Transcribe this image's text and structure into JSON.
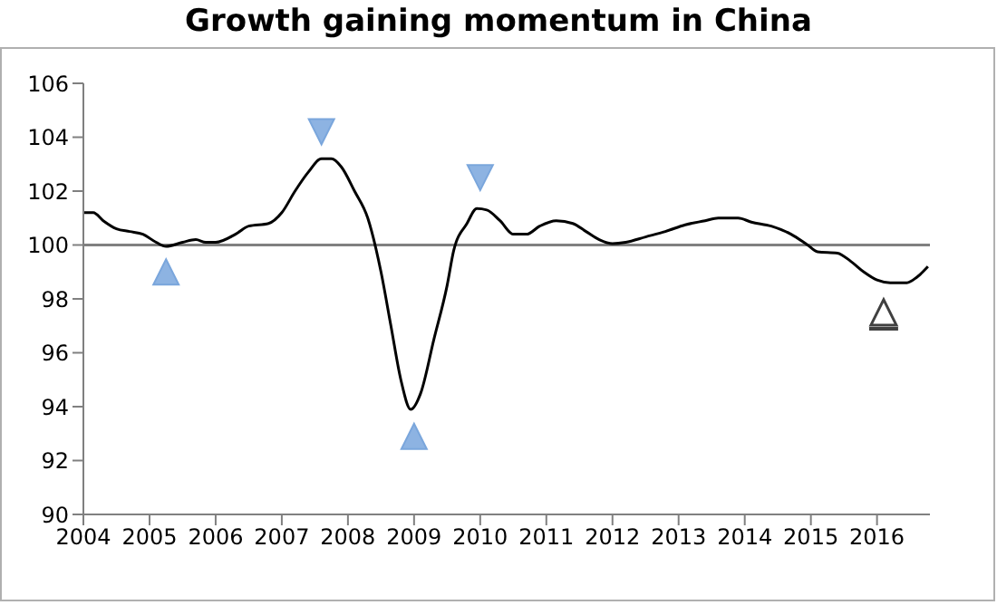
{
  "chart_data": {
    "type": "line",
    "title": "Growth gaining momentum in China",
    "x": [
      2004.0,
      2004.15,
      2004.3,
      2004.5,
      2004.7,
      2004.9,
      2005.1,
      2005.25,
      2005.5,
      2005.7,
      2005.85,
      2006.0,
      2006.3,
      2006.5,
      2006.8,
      2007.0,
      2007.2,
      2007.4,
      2007.6,
      2007.75,
      2007.9,
      2008.1,
      2008.3,
      2008.5,
      2008.65,
      2008.8,
      2008.95,
      2009.1,
      2009.3,
      2009.5,
      2009.6,
      2009.8,
      2009.95,
      2010.1,
      2010.3,
      2010.5,
      2010.7,
      2010.9,
      2011.15,
      2011.4,
      2011.6,
      2011.8,
      2012.0,
      2012.2,
      2012.5,
      2012.8,
      2013.1,
      2013.4,
      2013.6,
      2013.9,
      2014.1,
      2014.4,
      2014.7,
      2014.95,
      2015.1,
      2015.4,
      2015.6,
      2015.8,
      2016.0,
      2016.2,
      2016.45,
      2016.6,
      2016.77
    ],
    "series": [
      {
        "color": "#000000",
        "values": [
          101.2,
          101.2,
          100.9,
          100.6,
          100.5,
          100.4,
          100.1,
          99.95,
          100.1,
          100.2,
          100.1,
          100.1,
          100.4,
          100.7,
          100.8,
          101.2,
          102.0,
          102.7,
          103.2,
          103.2,
          102.9,
          102.0,
          101.0,
          99.0,
          97.0,
          95.0,
          93.9,
          94.5,
          96.5,
          98.5,
          99.8,
          100.8,
          101.35,
          101.3,
          100.9,
          100.4,
          100.4,
          100.7,
          100.9,
          100.8,
          100.5,
          100.2,
          100.05,
          100.1,
          100.3,
          100.5,
          100.75,
          100.9,
          101.0,
          101.0,
          100.85,
          100.7,
          100.4,
          100.0,
          99.75,
          99.7,
          99.4,
          99.0,
          98.7,
          98.6,
          98.6,
          98.8,
          99.2
        ]
      }
    ],
    "xlim": [
      2004,
      2016.8
    ],
    "xticks": [
      2004,
      2005,
      2006,
      2007,
      2008,
      2009,
      2010,
      2011,
      2012,
      2013,
      2014,
      2015,
      2016
    ],
    "ylim": [
      90,
      106
    ],
    "yticks": [
      90,
      92,
      94,
      96,
      98,
      100,
      102,
      104,
      106
    ],
    "ref_lines": [
      {
        "axis": "y",
        "value": 100,
        "color": "#808080"
      }
    ],
    "grid": false,
    "legend": false,
    "marker": "none",
    "line_style": "solid"
  }
}
